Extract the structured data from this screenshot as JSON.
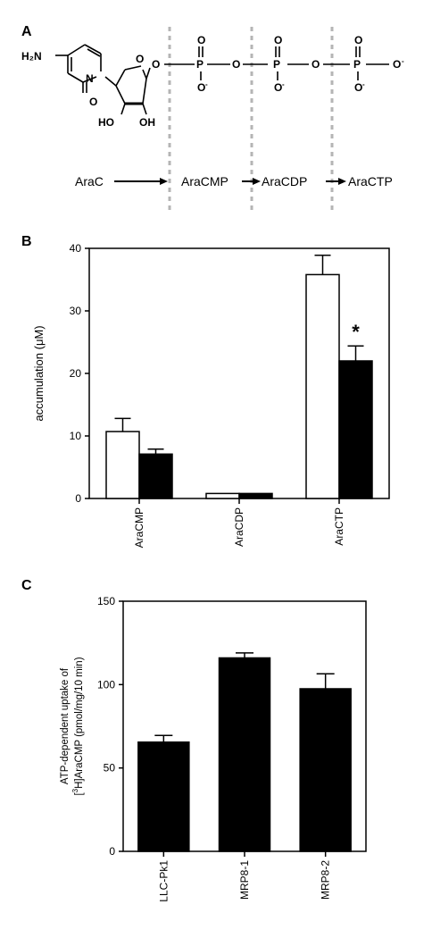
{
  "panels": {
    "A": {
      "label": "A",
      "structure": {
        "amine": "H₂N",
        "ring_n": "N",
        "ring_n2": "N",
        "carbonyl_o": "O",
        "ring_o": "O",
        "hydroxyl_left": "HO",
        "hydroxyl_right": "OH",
        "bridge_o": "O",
        "bridge_o2": "O",
        "bridge_o3": "O",
        "p": "P",
        "p2": "P",
        "p3": "P",
        "oxo_o": "O",
        "oxo_o2": "O",
        "oxo_o3": "O",
        "anion": "O",
        "anion2": "O",
        "anion3": "O",
        "anion4": "O",
        "minus": "-"
      },
      "pathway": [
        "AraC",
        "AraCMP",
        "AraCDP",
        "AraCTP"
      ]
    },
    "B": {
      "label": "B",
      "significance_marker": "*"
    },
    "C": {
      "label": "C"
    }
  },
  "chart_data": [
    {
      "panel": "B",
      "type": "bar",
      "categories": [
        "AraCMP",
        "AraCDP",
        "AraCTP"
      ],
      "series": [
        {
          "fill": "#ffffff",
          "values": [
            10.7,
            0.8,
            35.8
          ],
          "errors": [
            2.1,
            0.1,
            3.1
          ]
        },
        {
          "fill": "#000000",
          "values": [
            7.1,
            0.8,
            22.0
          ],
          "errors": [
            0.8,
            0.1,
            2.4
          ]
        }
      ],
      "ylabel": "accumulation (μM)",
      "ylim": [
        0,
        40
      ],
      "yticks": [
        0,
        10,
        20,
        30,
        40
      ],
      "annotation": {
        "text": "*",
        "category": "AraCTP",
        "series": 1
      }
    },
    {
      "panel": "C",
      "type": "bar",
      "categories": [
        "LLC-Pk1",
        "MRP8-1",
        "MRP8-2"
      ],
      "values": [
        65.5,
        116.0,
        97.5
      ],
      "errors": [
        4.0,
        3.0,
        9.0
      ],
      "fill": "#000000",
      "ylabel_line1": "ATP-dependent uptake of",
      "ylabel_line2_sup": "3",
      "ylabel_line2_a": "[",
      "ylabel_line2_b": "H]AraCMP (pmol/mg/10 min)",
      "ylim": [
        0,
        150
      ],
      "yticks": [
        0,
        50,
        100,
        150
      ]
    }
  ]
}
